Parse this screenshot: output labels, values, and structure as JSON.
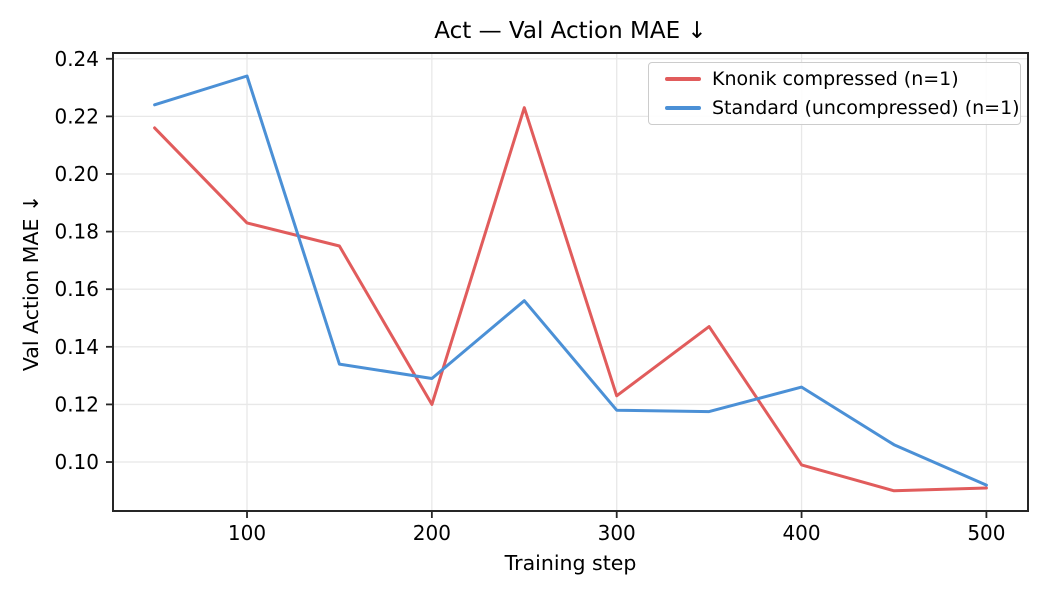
{
  "figure": {
    "background": "#ffffff"
  },
  "palette": {
    "grid_color": "#e8e8e8",
    "spine_color": "#262626",
    "tick_color": "#262626",
    "text_color": "#000000",
    "legend_border": "#cccccc"
  },
  "chart_data": {
    "type": "line",
    "title": "Act — Val Action MAE ↓",
    "xlabel": "Training step",
    "ylabel": "Val Action MAE ↓",
    "x": [
      50,
      100,
      150,
      200,
      250,
      300,
      350,
      400,
      450,
      500
    ],
    "series": [
      {
        "name": "Knonik compressed (n=1)",
        "color": "#e15c5c",
        "values": [
          0.216,
          0.183,
          0.175,
          0.12,
          0.223,
          0.123,
          0.147,
          0.099,
          0.09,
          0.091
        ]
      },
      {
        "name": "Standard (uncompressed) (n=1)",
        "color": "#4b90d6",
        "values": [
          0.224,
          0.234,
          0.134,
          0.129,
          0.156,
          0.118,
          0.1175,
          0.126,
          0.106,
          0.092
        ]
      }
    ],
    "x_ticks": [
      100,
      200,
      300,
      400,
      500
    ],
    "y_ticks": [
      0.1,
      0.12,
      0.14,
      0.16,
      0.18,
      0.2,
      0.22,
      0.24
    ],
    "xlim": [
      27.5,
      522.5
    ],
    "ylim": [
      0.083,
      0.242
    ],
    "grid": true,
    "legend_position": "upper right",
    "line_width": 3
  }
}
